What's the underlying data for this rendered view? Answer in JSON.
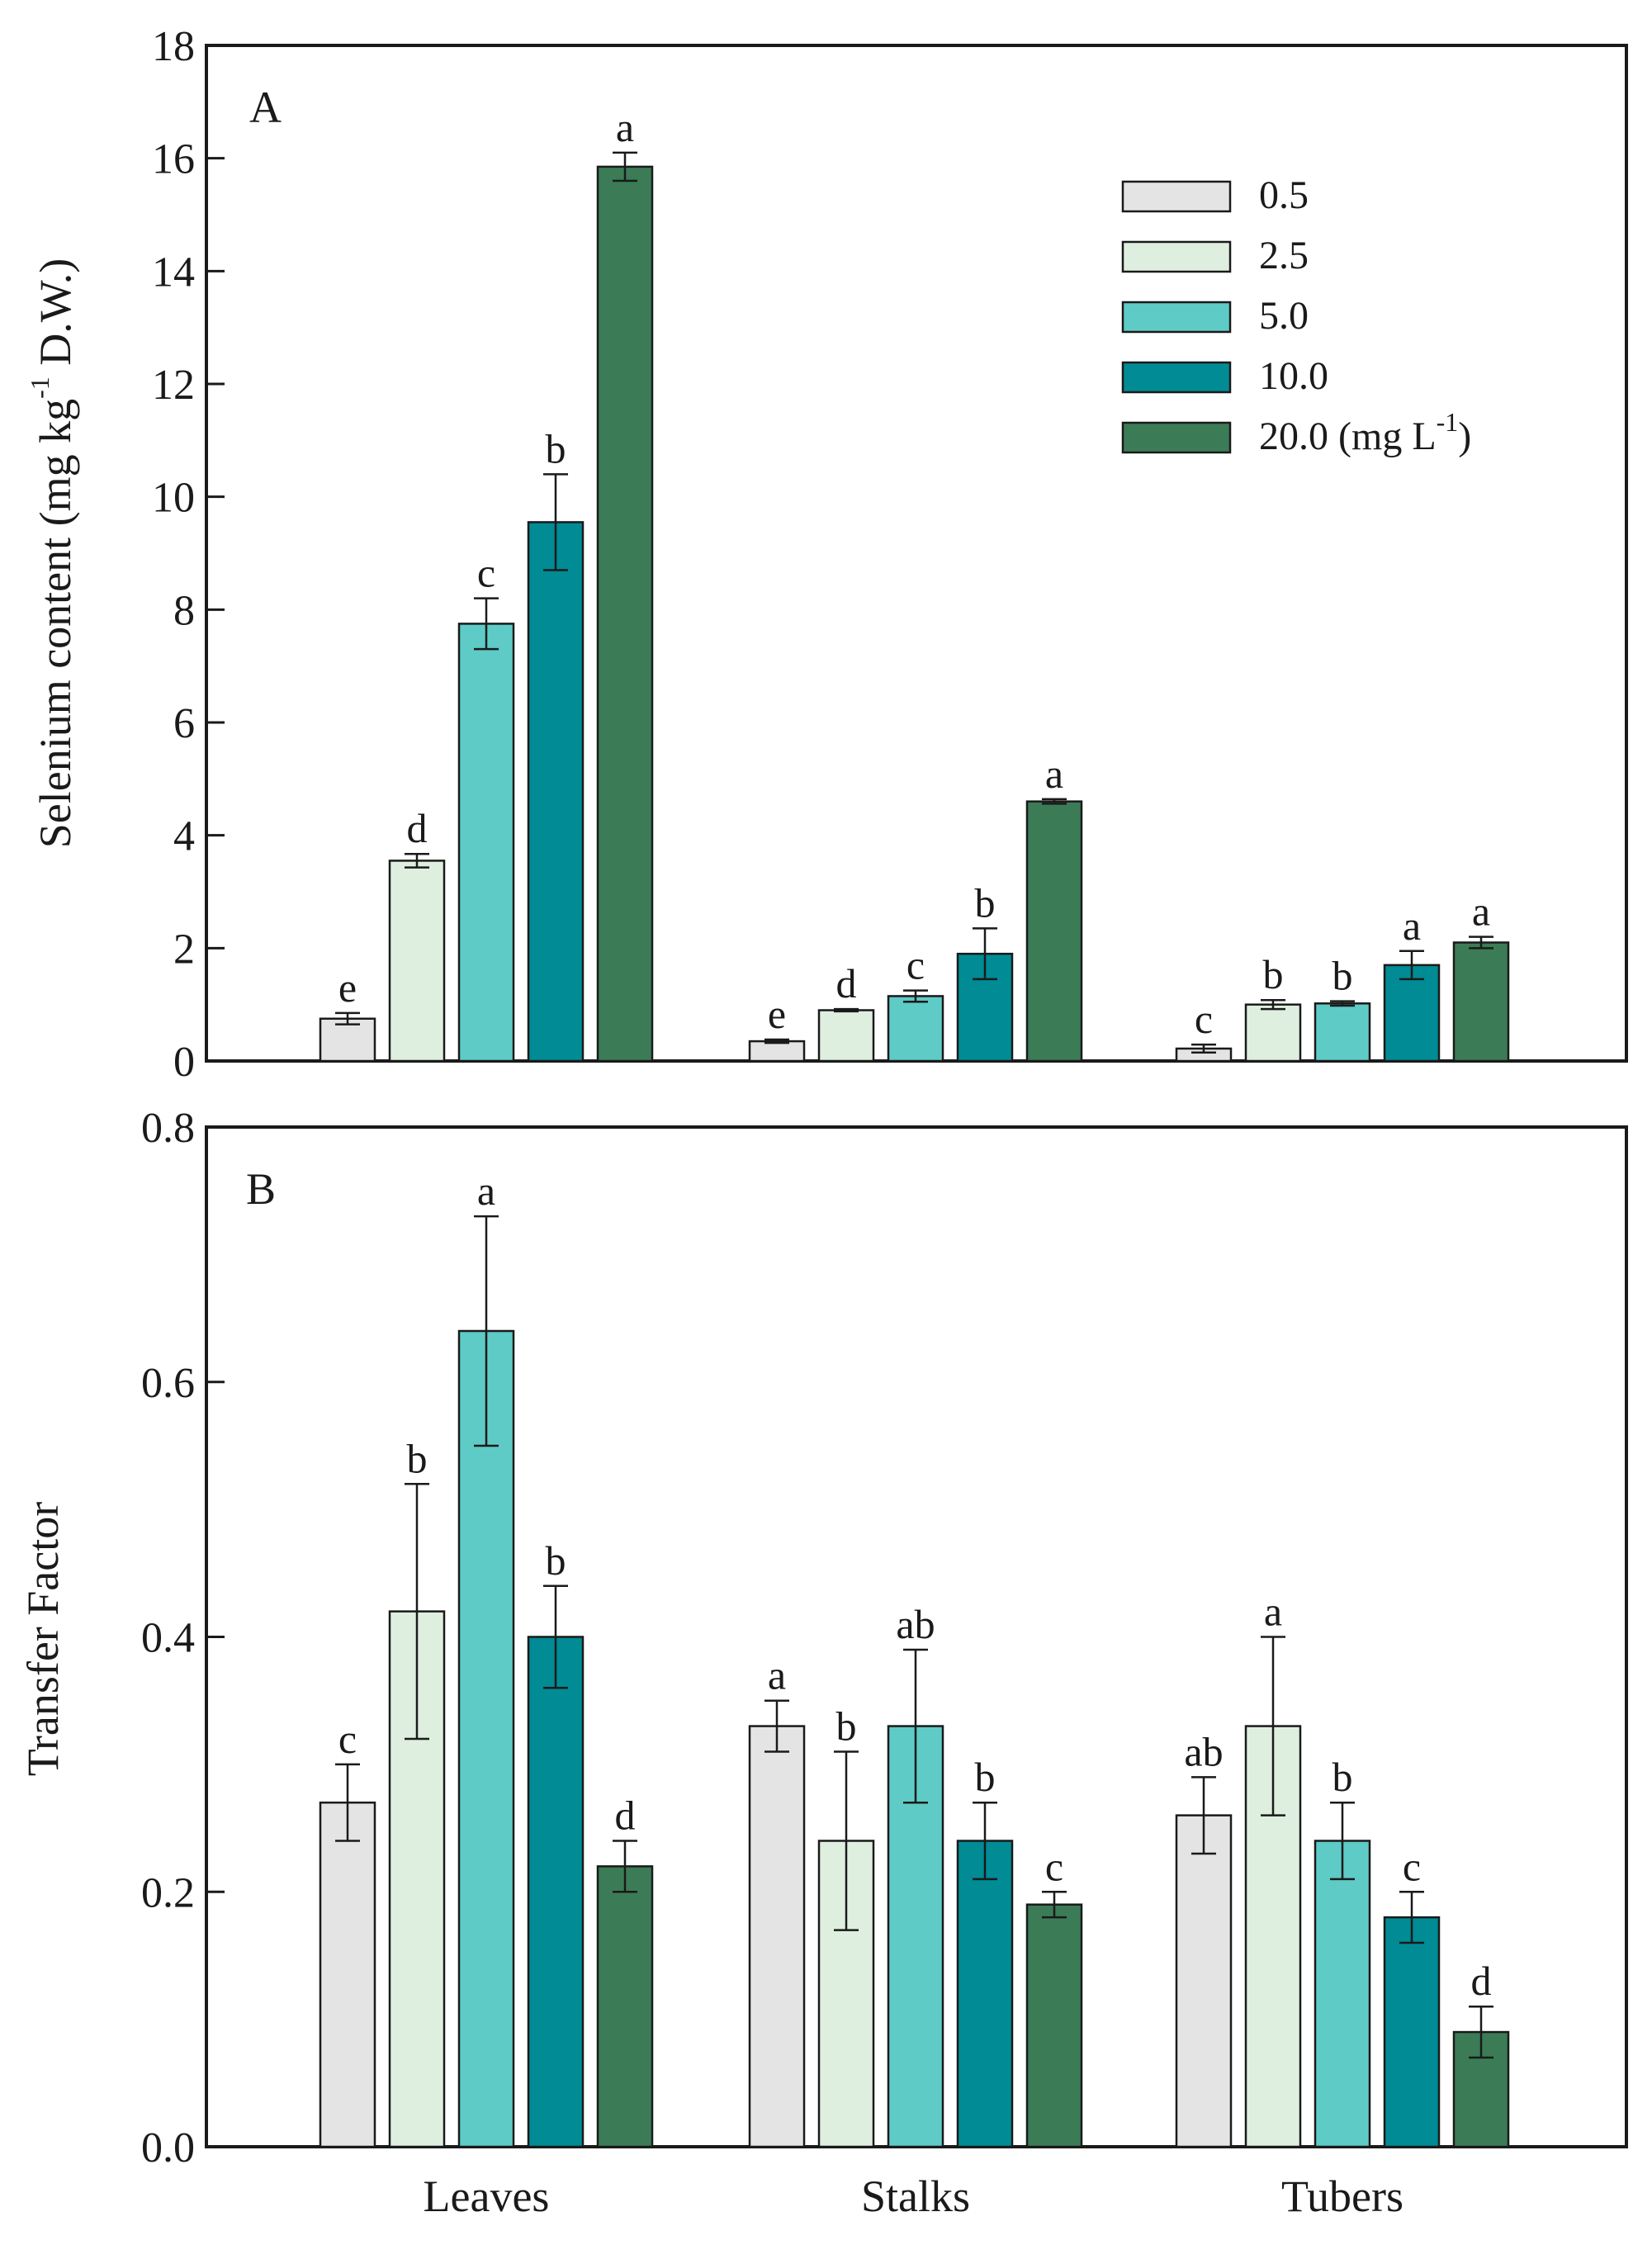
{
  "chart_data": [
    {
      "type": "bar",
      "panel_label": "A",
      "ylabel": {
        "prefix": "Selenium content (mg kg",
        "sup": "-1",
        "suffix": " D.W.)"
      },
      "ylim": [
        0,
        18
      ],
      "yticks": [
        "0",
        "2",
        "4",
        "6",
        "8",
        "10",
        "12",
        "14",
        "16",
        "18"
      ],
      "categories": [
        "Leaves",
        "Stalks",
        "Tubers"
      ],
      "series": [
        {
          "name": "0.5",
          "color": "#e4e4e4",
          "values": [
            0.75,
            0.35,
            0.22
          ],
          "errors": [
            0.1,
            0.03,
            0.07
          ],
          "letters": [
            "e",
            "e",
            "c"
          ]
        },
        {
          "name": "2.5",
          "color": "#deefdf",
          "values": [
            3.55,
            0.9,
            1.0
          ],
          "errors": [
            0.12,
            0.02,
            0.08
          ],
          "letters": [
            "d",
            "d",
            "b"
          ]
        },
        {
          "name": "5.0",
          "color": "#5ecbc6",
          "values": [
            7.75,
            1.15,
            1.02
          ],
          "errors": [
            0.45,
            0.1,
            0.04
          ],
          "letters": [
            "c",
            "c",
            "b"
          ]
        },
        {
          "name": "10.0",
          "color": "#008b95",
          "values": [
            9.55,
            1.9,
            1.7
          ],
          "errors": [
            0.85,
            0.45,
            0.25
          ],
          "letters": [
            "b",
            "b",
            "a"
          ]
        },
        {
          "name": "20.0",
          "color": "#3b7c56",
          "values": [
            15.85,
            4.6,
            2.1
          ],
          "errors": [
            0.25,
            0.04,
            0.1
          ],
          "letters": [
            "a",
            "a",
            "a"
          ]
        }
      ],
      "legend": {
        "position": "top-right",
        "last_suffix": {
          "prefix": " (mg L",
          "sup": "-1",
          "suffix": ")"
        }
      }
    },
    {
      "type": "bar",
      "panel_label": "B",
      "ylabel": "Transfer Factor",
      "ylim": [
        0,
        0.8
      ],
      "yticks": [
        "0.0",
        "0.2",
        "0.4",
        "0.6",
        "0.8"
      ],
      "categories": [
        "Leaves",
        "Stalks",
        "Tubers"
      ],
      "series": [
        {
          "name": "0.5",
          "color": "#e4e4e4",
          "values": [
            0.27,
            0.33,
            0.26
          ],
          "errors": [
            0.03,
            0.02,
            0.03
          ],
          "letters": [
            "c",
            "a",
            "ab"
          ]
        },
        {
          "name": "2.5",
          "color": "#deefdf",
          "values": [
            0.42,
            0.24,
            0.33
          ],
          "errors": [
            0.1,
            0.07,
            0.07
          ],
          "letters": [
            "b",
            "b",
            "a"
          ]
        },
        {
          "name": "5.0",
          "color": "#5ecbc6",
          "values": [
            0.64,
            0.33,
            0.24
          ],
          "errors": [
            0.09,
            0.06,
            0.03
          ],
          "letters": [
            "a",
            "ab",
            "b"
          ]
        },
        {
          "name": "10.0",
          "color": "#008b95",
          "values": [
            0.4,
            0.24,
            0.18
          ],
          "errors": [
            0.04,
            0.03,
            0.02
          ],
          "letters": [
            "b",
            "b",
            "c"
          ]
        },
        {
          "name": "20.0",
          "color": "#3b7c56",
          "values": [
            0.22,
            0.19,
            0.09
          ],
          "errors": [
            0.02,
            0.01,
            0.02
          ],
          "letters": [
            "d",
            "c",
            "d"
          ]
        }
      ]
    }
  ]
}
